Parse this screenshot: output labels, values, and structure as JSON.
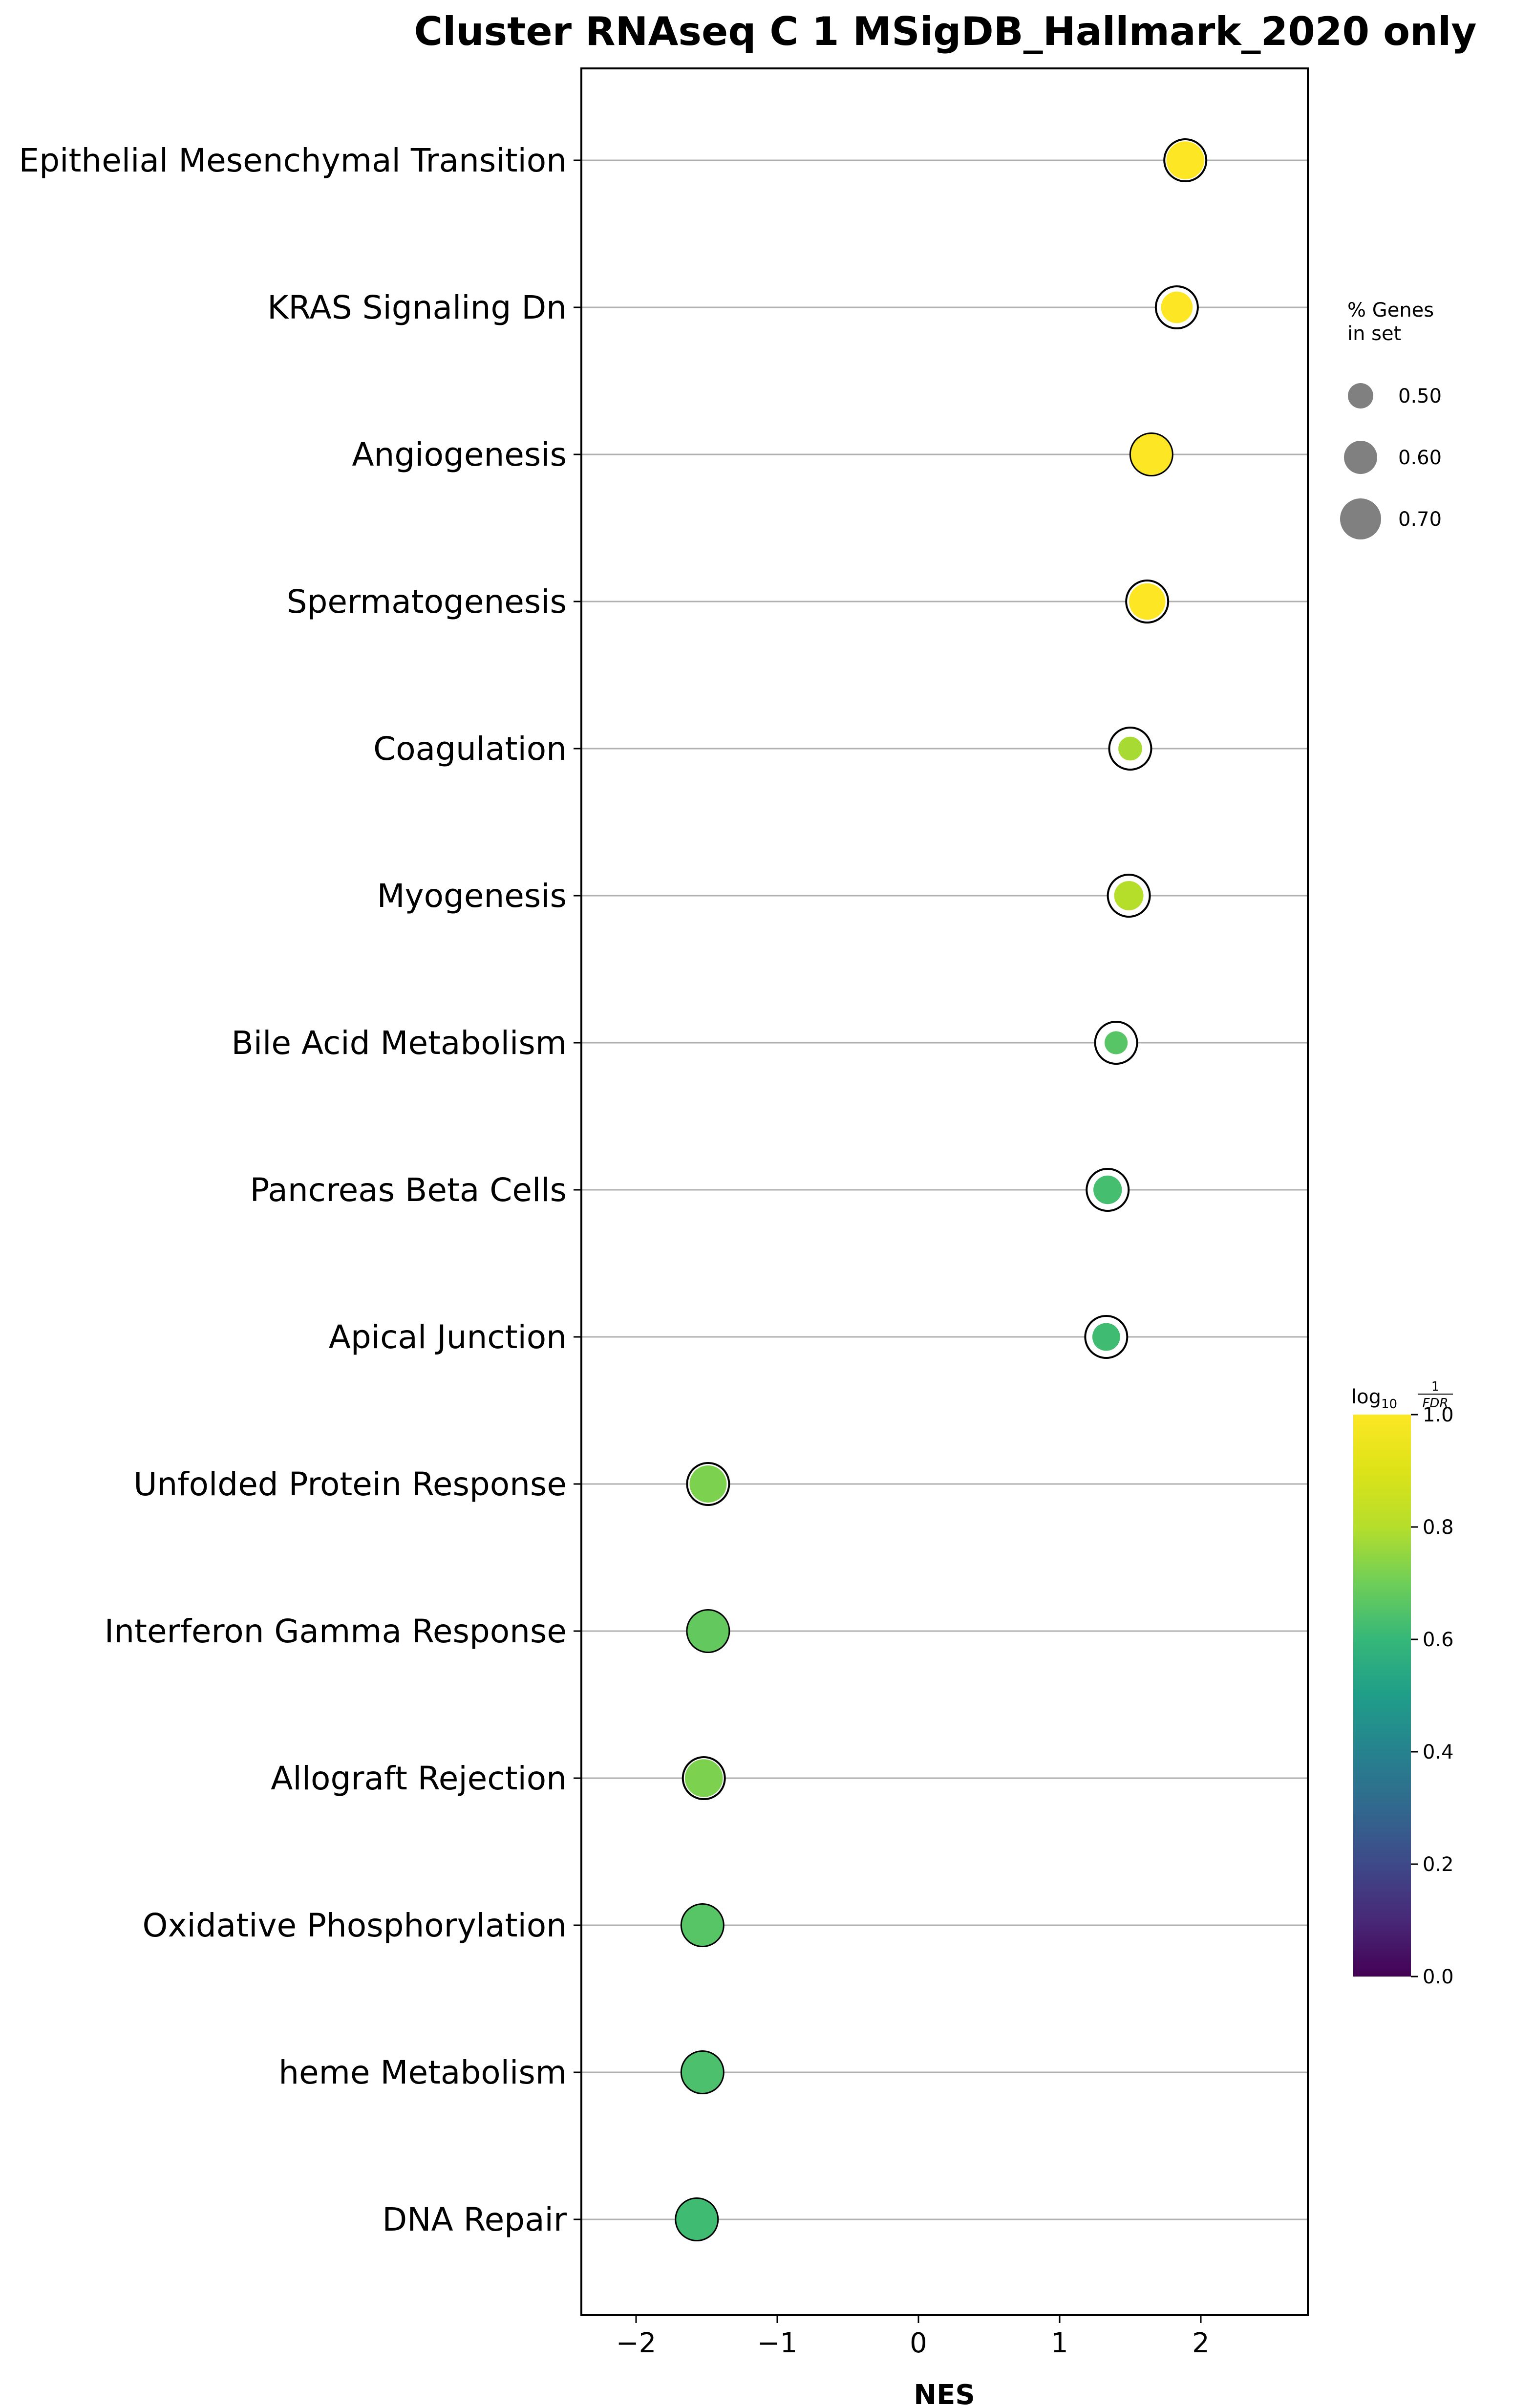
{
  "chart_data": {
    "type": "scatter",
    "title": "Cluster RNAseq C 1 MSigDB_Hallmark_2020 only",
    "xlabel": "NES",
    "ylabel": "",
    "xlim": [
      -2.4,
      2.75
    ],
    "xticks": [
      -2,
      -1,
      0,
      1,
      2
    ],
    "xtick_labels": [
      "−2",
      "−1",
      "0",
      "1",
      "2"
    ],
    "grid": "horizontal lines at each term",
    "categories": [
      "Epithelial Mesenchymal Transition",
      "KRAS Signaling Dn",
      "Angiogenesis",
      "Spermatogenesis",
      "Coagulation",
      "Myogenesis",
      "Bile Acid Metabolism",
      "Pancreas Beta Cells",
      "Apical Junction",
      "Unfolded Protein Response",
      "Interferon Gamma Response",
      "Allograft Rejection",
      "Oxidative Phosphorylation",
      "heme Metabolism",
      "DNA Repair"
    ],
    "nes": [
      1.89,
      1.83,
      1.65,
      1.62,
      1.5,
      1.49,
      1.4,
      1.34,
      1.33,
      -1.49,
      -1.49,
      -1.52,
      -1.53,
      -1.53,
      -1.57
    ],
    "pct_genes_in_set": [
      0.66,
      0.58,
      0.7,
      0.64,
      0.48,
      0.55,
      0.47,
      0.54,
      0.53,
      0.65,
      0.7,
      0.66,
      0.7,
      0.7,
      0.7
    ],
    "log10_inv_fdr": [
      1.0,
      1.0,
      1.0,
      1.0,
      0.78,
      0.8,
      0.66,
      0.63,
      0.62,
      0.72,
      0.68,
      0.72,
      0.66,
      0.64,
      0.62
    ],
    "size_legend": {
      "title": [
        "% Genes",
        "in set"
      ],
      "entries": [
        "0.50",
        "0.60",
        "0.70"
      ],
      "values": [
        0.5,
        0.6,
        0.7
      ],
      "color": "#808080"
    },
    "colorbar": {
      "title": "log",
      "title_sub": "10",
      "frac_num": "1",
      "frac_den": "FDR",
      "colormap": "viridis",
      "range": [
        0.0,
        1.0
      ],
      "ticks": [
        0.0,
        0.2,
        0.4,
        0.6,
        0.8,
        1.0
      ],
      "tick_labels": [
        "0.0",
        "0.2",
        "0.4",
        "0.6",
        "0.8",
        "1.0"
      ]
    }
  }
}
